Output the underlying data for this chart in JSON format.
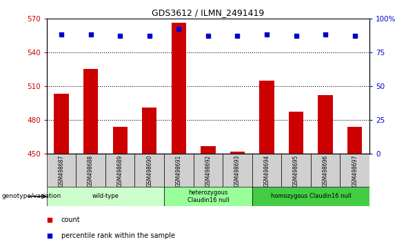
{
  "title": "GDS3612 / ILMN_2491419",
  "samples": [
    "GSM498687",
    "GSM498688",
    "GSM498689",
    "GSM498690",
    "GSM498691",
    "GSM498692",
    "GSM498693",
    "GSM498694",
    "GSM498695",
    "GSM498696",
    "GSM498697"
  ],
  "counts": [
    503,
    525,
    474,
    491,
    566,
    457,
    452,
    515,
    487,
    502,
    474
  ],
  "percentile_ranks": [
    88,
    88,
    87,
    87,
    92,
    87,
    87,
    88,
    87,
    88,
    87
  ],
  "ylim_left": [
    450,
    570
  ],
  "ylim_right": [
    0,
    100
  ],
  "yticks_left": [
    450,
    480,
    510,
    540,
    570
  ],
  "yticks_right": [
    0,
    25,
    50,
    75,
    100
  ],
  "bar_color": "#cc0000",
  "dot_color": "#0000cc",
  "groups": [
    {
      "label": "wild-type",
      "start": 0,
      "end": 3,
      "color": "#ccffcc"
    },
    {
      "label": "heterozygous\nClaudin16 null",
      "start": 4,
      "end": 6,
      "color": "#99ff99"
    },
    {
      "label": "homozygous Claudin16 null",
      "start": 7,
      "end": 10,
      "color": "#44cc44"
    }
  ],
  "group_label_prefix": "genotype/variation",
  "legend_count_label": "count",
  "legend_percentile_label": "percentile rank within the sample",
  "ylabel_left_color": "#cc0000",
  "ylabel_right_color": "#0000cc",
  "sample_box_color": "#d0d0d0",
  "bar_width": 0.5
}
